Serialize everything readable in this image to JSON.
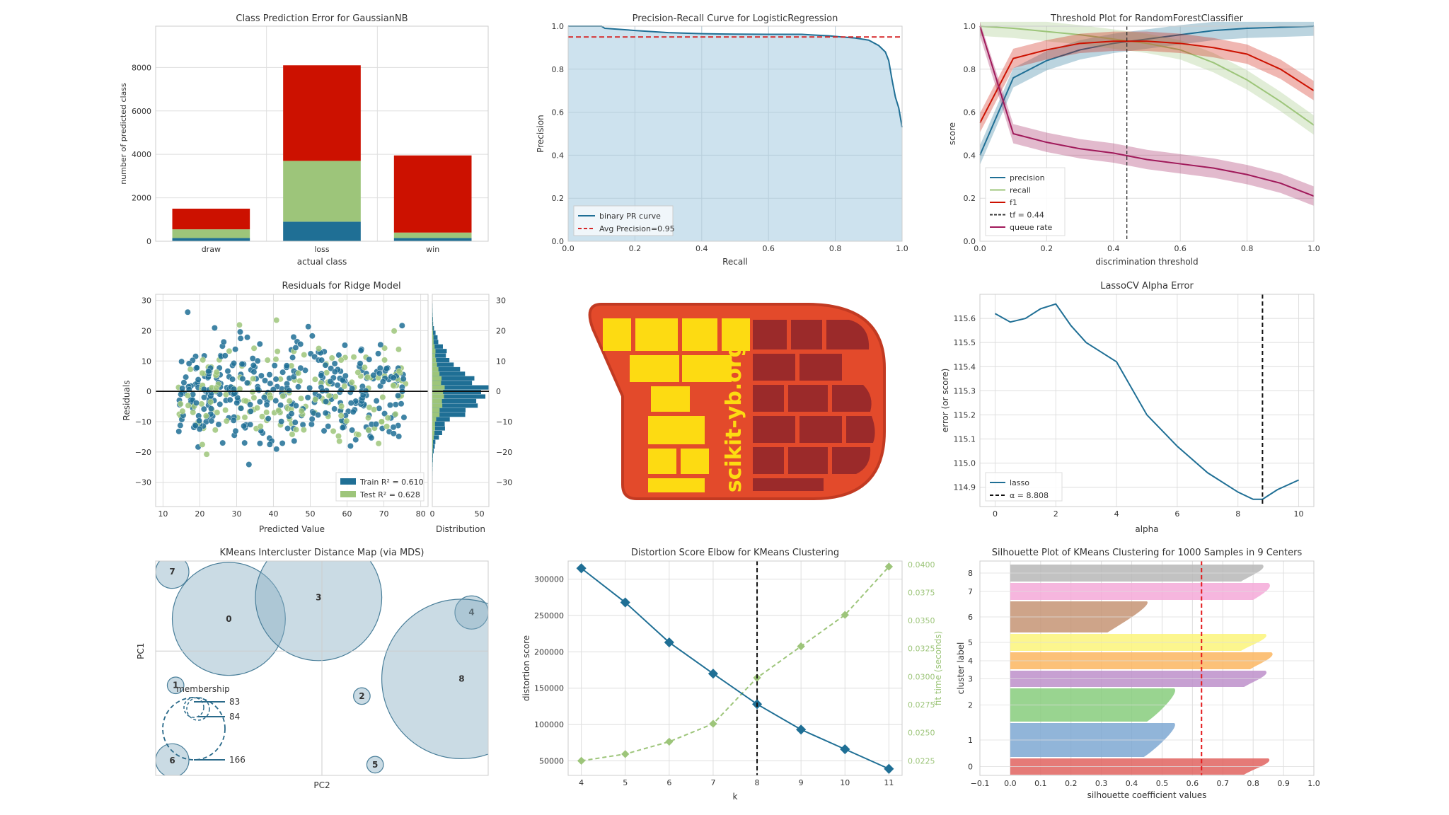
{
  "colors": {
    "blue": "#1f6f95",
    "green": "#9dc57a",
    "red": "#cc1100",
    "grid": "#dedede",
    "axis": "#cccccc",
    "panel_bg": "#ffffff",
    "area": "#c8dfec",
    "dark": "#222222",
    "logo_orange": "#e34a2b",
    "logo_yellow": "#fddb12",
    "logo_brick": "#9b2a2a",
    "logo_border": "#c23a22"
  },
  "chart_data": [
    {
      "id": "class_prediction_error",
      "type": "bar",
      "title": "Class Prediction Error for GaussianNB",
      "xlabel": "actual class",
      "ylabel": "number of predicted class",
      "categories": [
        "draw",
        "loss",
        "win"
      ],
      "series": [
        {
          "name": "draw",
          "color": "#1f6f95",
          "values": [
            150,
            900,
            150
          ]
        },
        {
          "name": "loss",
          "color": "#9dc57a",
          "values": [
            400,
            2800,
            250
          ]
        },
        {
          "name": "win",
          "color": "#cc1100",
          "values": [
            950,
            4400,
            3550
          ]
        }
      ],
      "ylim": [
        0,
        9900
      ],
      "yticks": [
        0,
        2000,
        4000,
        6000,
        8000
      ]
    },
    {
      "id": "precision_recall",
      "type": "area",
      "title": "Precision-Recall Curve for LogisticRegression",
      "xlabel": "Recall",
      "ylabel": "Precision",
      "xlim": [
        0,
        1
      ],
      "ylim": [
        0,
        1
      ],
      "xticks": [
        0.0,
        0.2,
        0.4,
        0.6,
        0.8,
        1.0
      ],
      "yticks": [
        0.0,
        0.2,
        0.4,
        0.6,
        0.8,
        1.0
      ],
      "x": [
        0,
        0.1,
        0.11,
        0.2,
        0.3,
        0.4,
        0.5,
        0.6,
        0.7,
        0.78,
        0.82,
        0.86,
        0.9,
        0.93,
        0.95,
        0.96,
        0.97,
        0.98,
        0.99,
        1.0
      ],
      "y": [
        1.0,
        1.0,
        0.99,
        0.98,
        0.97,
        0.965,
        0.963,
        0.962,
        0.962,
        0.955,
        0.95,
        0.945,
        0.935,
        0.91,
        0.88,
        0.84,
        0.75,
        0.67,
        0.62,
        0.53
      ],
      "avg_precision": 0.95,
      "legend": [
        "binary PR curve",
        "Avg Precision=0.95"
      ]
    },
    {
      "id": "threshold_plot",
      "type": "line",
      "title": "Threshold Plot for RandomForestClassifier",
      "xlabel": "discrimination threshold",
      "ylabel": "score",
      "xlim": [
        0,
        1
      ],
      "ylim": [
        0,
        1
      ],
      "xticks": [
        0.0,
        0.2,
        0.4,
        0.6,
        0.8,
        1.0
      ],
      "yticks": [
        0.0,
        0.2,
        0.4,
        0.6,
        0.8,
        1.0
      ],
      "x": [
        0,
        0.1,
        0.2,
        0.3,
        0.4,
        0.5,
        0.6,
        0.7,
        0.8,
        0.9,
        1.0
      ],
      "series": [
        {
          "name": "precision",
          "color": "#1f6f95",
          "values": [
            0.4,
            0.76,
            0.84,
            0.89,
            0.92,
            0.94,
            0.96,
            0.98,
            0.99,
            0.995,
            1.0
          ]
        },
        {
          "name": "recall",
          "color": "#9dc57a",
          "values": [
            1.0,
            0.99,
            0.975,
            0.96,
            0.94,
            0.92,
            0.89,
            0.83,
            0.75,
            0.65,
            0.54
          ]
        },
        {
          "name": "f1",
          "color": "#cc1100",
          "values": [
            0.55,
            0.85,
            0.89,
            0.92,
            0.93,
            0.93,
            0.92,
            0.9,
            0.87,
            0.8,
            0.7
          ]
        },
        {
          "name": "queue rate",
          "color": "#a0195a",
          "values": [
            1.0,
            0.5,
            0.46,
            0.43,
            0.41,
            0.38,
            0.36,
            0.34,
            0.31,
            0.27,
            0.21
          ]
        }
      ],
      "threshold": 0.44,
      "legend": [
        "precision",
        "recall",
        "f1",
        "tf = 0.44",
        "queue rate"
      ]
    },
    {
      "id": "residuals",
      "type": "scatter",
      "title": "Residuals for Ridge Model",
      "xlabel": "Predicted Value",
      "ylabel": "Residuals",
      "hist_label": "Distribution",
      "xlim": [
        8,
        82
      ],
      "ylim": [
        -38,
        32
      ],
      "xticks": [
        10,
        20,
        30,
        40,
        50,
        60,
        70,
        80
      ],
      "yticks": [
        -30,
        -20,
        -10,
        0,
        10,
        20,
        30
      ],
      "hist_xticks": [
        0,
        50
      ],
      "legend": [
        "Train R² = 0.610",
        "Test R² = 0.628"
      ]
    },
    {
      "id": "lasso_alpha",
      "type": "line",
      "title": "LassoCV Alpha Error",
      "xlabel": "alpha",
      "ylabel": "error (or score)",
      "xlim": [
        -0.5,
        10.5
      ],
      "ylim": [
        114.82,
        115.7
      ],
      "xticks": [
        0,
        2,
        4,
        6,
        8,
        10
      ],
      "yticks": [
        114.9,
        115.0,
        115.1,
        115.2,
        115.3,
        115.4,
        115.5,
        115.6
      ],
      "x": [
        0,
        0.5,
        1,
        1.5,
        2,
        2.5,
        3,
        3.5,
        4,
        5,
        6,
        7,
        8,
        8.5,
        8.808,
        9.3,
        10
      ],
      "y": [
        115.62,
        115.585,
        115.6,
        115.64,
        115.66,
        115.57,
        115.5,
        115.46,
        115.42,
        115.2,
        115.07,
        114.96,
        114.88,
        114.85,
        114.85,
        114.89,
        114.93
      ],
      "alpha": 8.808,
      "legend": [
        "lasso",
        "α = 8.808"
      ]
    },
    {
      "id": "intercluster",
      "type": "scatter",
      "title": "KMeans Intercluster Distance Map (via MDS)",
      "xlabel": "PC2",
      "ylabel": "PC1",
      "legend_title": "membership",
      "clusters": [
        {
          "label": "0",
          "cx": 0.22,
          "cy": 0.73,
          "r": 0.17
        },
        {
          "label": "1",
          "cx": 0.06,
          "cy": 0.42,
          "r": 0.025
        },
        {
          "label": "2",
          "cx": 0.62,
          "cy": 0.37,
          "r": 0.025
        },
        {
          "label": "3",
          "cx": 0.49,
          "cy": 0.83,
          "r": 0.19
        },
        {
          "label": "4",
          "cx": 0.95,
          "cy": 0.76,
          "r": 0.05
        },
        {
          "label": "5",
          "cx": 0.66,
          "cy": 0.05,
          "r": 0.025
        },
        {
          "label": "6",
          "cx": 0.05,
          "cy": 0.07,
          "r": 0.05
        },
        {
          "label": "7",
          "cx": 0.05,
          "cy": 0.95,
          "r": 0.05
        },
        {
          "label": "8",
          "cx": 0.92,
          "cy": 0.45,
          "r": 0.24
        }
      ],
      "membership_sizes": [
        "83",
        "84",
        "166"
      ]
    },
    {
      "id": "elbow",
      "type": "line",
      "title": "Distortion Score Elbow for KMeans Clustering",
      "xlabel": "k",
      "ylabel": "distortion score",
      "ylabel2": "fit time (seconds)",
      "x": [
        4,
        5,
        6,
        7,
        8,
        9,
        10,
        11
      ],
      "series": [
        {
          "name": "distortion score",
          "color": "#1f6f95",
          "values": [
            315000,
            268000,
            213000,
            170000,
            128000,
            93000,
            66000,
            39000
          ]
        },
        {
          "name": "fit time",
          "color": "#9dc57a",
          "values": [
            0.0225,
            0.0231,
            0.0242,
            0.0258,
            0.0299,
            0.0327,
            0.0355,
            0.0398
          ]
        }
      ],
      "ylim": [
        30000,
        325000
      ],
      "y2lim": [
        0.0212,
        0.0403
      ],
      "yticks": [
        50000,
        100000,
        150000,
        200000,
        250000,
        300000
      ],
      "y2ticks": [
        0.0225,
        0.025,
        0.0275,
        0.03,
        0.0325,
        0.035,
        0.0375,
        0.04
      ],
      "elbow_k": 8
    },
    {
      "id": "silhouette",
      "type": "area",
      "title": "Silhouette Plot of KMeans Clustering for 1000 Samples in 9 Centers",
      "xlabel": "silhouette coefficient values",
      "ylabel": "cluster label",
      "xlim": [
        -0.1,
        1.0
      ],
      "xticks": [
        -0.1,
        0.0,
        0.1,
        0.2,
        0.3,
        0.4,
        0.5,
        0.6,
        0.7,
        0.8,
        0.9,
        1.0
      ],
      "clusters": [
        {
          "label": "0",
          "color": "#e0635f",
          "width": [
            0.85,
            0.8
          ]
        },
        {
          "label": "1",
          "color": "#7ea8d2",
          "width": [
            0.54,
            0.47
          ]
        },
        {
          "label": "2",
          "color": "#87cd7d",
          "width": [
            0.54,
            0.48
          ]
        },
        {
          "label": "3",
          "color": "#bd8fca",
          "width": [
            0.84,
            0.8
          ]
        },
        {
          "label": "4",
          "color": "#fbb660",
          "width": [
            0.86,
            0.82
          ]
        },
        {
          "label": "5",
          "color": "#fbf57a",
          "width": [
            0.84,
            0.79
          ]
        },
        {
          "label": "6",
          "color": "#c69474",
          "width": [
            0.45,
            0.35
          ]
        },
        {
          "label": "7",
          "color": "#f5a9d8",
          "width": [
            0.85,
            0.83
          ]
        },
        {
          "label": "8",
          "color": "#b7b7b7",
          "width": [
            0.83,
            0.79
          ]
        }
      ],
      "avg_score": 0.63
    }
  ],
  "logo": {
    "text": "scikit-yb.org"
  }
}
